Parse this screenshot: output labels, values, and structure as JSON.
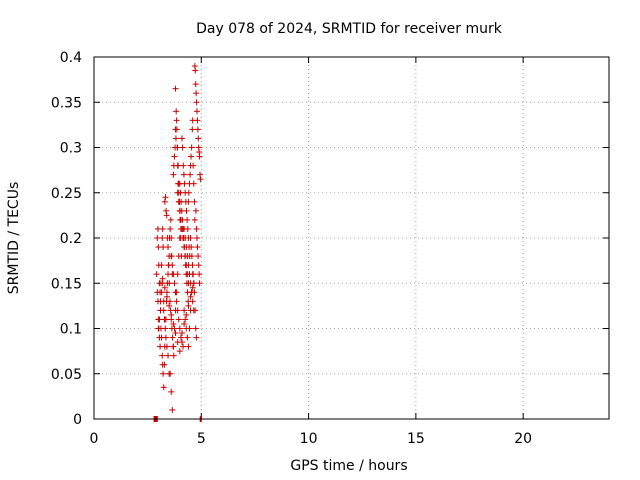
{
  "chart_data": {
    "type": "scatter",
    "title": "Day 078 of 2024, SRMTID for receiver murk",
    "xlabel": "GPS time / hours",
    "ylabel": "SRMTID / TECUs",
    "xlim": [
      0,
      24
    ],
    "ylim": [
      0,
      0.4
    ],
    "x_ticks": [
      0,
      5,
      10,
      15,
      20
    ],
    "x_tick_labels": [
      "0",
      "5",
      "10",
      "15",
      "20"
    ],
    "y_ticks": [
      0,
      0.05,
      0.1,
      0.15,
      0.2,
      0.25,
      0.3,
      0.35,
      0.4
    ],
    "y_tick_labels": [
      "0",
      "0.05",
      "0.1",
      "0.15",
      "0.2",
      "0.25",
      "0.3",
      "0.35",
      "0.4"
    ],
    "grid": true,
    "marker": "plus",
    "marker_color": "#cc0000",
    "series": [
      {
        "x": [
          2.8,
          2.83,
          2.86,
          2.88,
          2.9,
          2.92,
          2.95,
          4.95,
          4.97,
          5.0,
          2.92,
          2.95,
          2.98,
          3.0,
          3.02,
          3.05,
          3.08,
          3.1,
          3.12,
          3.15,
          3.18,
          3.2,
          3.22,
          3.25,
          3.28,
          2.95,
          2.98,
          3.0,
          3.02,
          3.05,
          3.08,
          3.1,
          3.12,
          3.15,
          3.18,
          3.2,
          3.22,
          3.25,
          3.28,
          3.3,
          3.32,
          3.35,
          3.38,
          3.4,
          3.42,
          3.45,
          3.48,
          3.5,
          3.52,
          3.55,
          3.58,
          3.6,
          3.62,
          3.65,
          3.3,
          3.33,
          3.36,
          3.39,
          3.42,
          3.45,
          3.48,
          3.51,
          3.54,
          3.57,
          3.6,
          3.63,
          3.66,
          3.69,
          3.72,
          3.5,
          3.55,
          3.6,
          3.65,
          3.7,
          3.75,
          3.8,
          3.85,
          3.9,
          3.95,
          4.0,
          4.05,
          3.7,
          3.72,
          3.75,
          3.78,
          3.8,
          3.82,
          3.85,
          3.88,
          3.9,
          3.92,
          3.95,
          3.98,
          4.0,
          3.8,
          3.83,
          3.86,
          3.89,
          3.92,
          3.95,
          3.98,
          4.01,
          4.04,
          4.07,
          4.0,
          4.03,
          4.06,
          4.09,
          4.12,
          4.15,
          4.18,
          4.21,
          4.24,
          4.27,
          4.3,
          4.33,
          4.36,
          4.39,
          4.1,
          4.13,
          4.16,
          4.19,
          4.22,
          4.25,
          4.28,
          4.31,
          4.34,
          4.37,
          4.4,
          4.43,
          4.46,
          4.2,
          4.25,
          4.3,
          4.35,
          4.4,
          4.45,
          4.5,
          4.55,
          4.6,
          4.65,
          4.4,
          4.42,
          4.45,
          4.48,
          4.5,
          4.52,
          4.55,
          4.58,
          4.6,
          4.62,
          4.65,
          4.68,
          4.7,
          4.5,
          4.53,
          4.56,
          4.59,
          4.62,
          4.65,
          4.68,
          4.71,
          4.74,
          4.77,
          4.7,
          4.72,
          4.74,
          4.76,
          4.78,
          4.8,
          4.82,
          4.84,
          4.86,
          4.88,
          4.9,
          4.92,
          4.94,
          4.96,
          4.75,
          4.78,
          4.8,
          4.82,
          4.85,
          4.88,
          4.9,
          4.92,
          3.0,
          3.05,
          3.1,
          3.15,
          3.2,
          3.25,
          3.3,
          3.35,
          3.4,
          3.45,
          3.6,
          3.65,
          3.7,
          3.75,
          3.8,
          3.85,
          3.9,
          3.95,
          4.0,
          4.05,
          4.1,
          4.15,
          4.2,
          4.25,
          4.3,
          4.35,
          4.4,
          4.45,
          4.5,
          4.55,
          4.6,
          4.65,
          3.9,
          3.95,
          4.0,
          4.05,
          4.1,
          4.15,
          4.2,
          4.25,
          4.3,
          4.35,
          4.4,
          3.2,
          3.3,
          3.4,
          3.5,
          3.6,
          3.7,
          3.8,
          3.9,
          4.0,
          4.1,
          4.2,
          4.3,
          4.4,
          4.5,
          4.6
        ],
        "y": [
          0.0,
          0.0,
          0.0,
          0.0,
          0.0,
          0.0,
          0.0,
          0.0,
          0.0,
          0.0,
          0.16,
          0.14,
          0.13,
          0.11,
          0.1,
          0.09,
          0.08,
          0.12,
          0.15,
          0.17,
          0.2,
          0.21,
          0.19,
          0.13,
          0.11,
          0.2,
          0.21,
          0.19,
          0.17,
          0.15,
          0.14,
          0.12,
          0.1,
          0.09,
          0.07,
          0.06,
          0.05,
          0.035,
          0.06,
          0.08,
          0.1,
          0.11,
          0.13,
          0.14,
          0.15,
          0.16,
          0.17,
          0.18,
          0.2,
          0.21,
          0.22,
          0.2,
          0.18,
          0.16,
          0.24,
          0.245,
          0.23,
          0.225,
          0.2,
          0.19,
          0.17,
          0.15,
          0.13,
          0.12,
          0.11,
          0.1,
          0.09,
          0.08,
          0.07,
          0.05,
          0.05,
          0.03,
          0.01,
          0.08,
          0.1,
          0.12,
          0.14,
          0.16,
          0.18,
          0.2,
          0.21,
          0.27,
          0.28,
          0.29,
          0.3,
          0.32,
          0.31,
          0.33,
          0.3,
          0.28,
          0.26,
          0.25,
          0.24,
          0.23,
          0.365,
          0.34,
          0.32,
          0.3,
          0.28,
          0.26,
          0.24,
          0.22,
          0.2,
          0.18,
          0.26,
          0.25,
          0.24,
          0.23,
          0.22,
          0.21,
          0.2,
          0.19,
          0.18,
          0.17,
          0.16,
          0.15,
          0.14,
          0.13,
          0.31,
          0.3,
          0.28,
          0.27,
          0.26,
          0.25,
          0.24,
          0.23,
          0.22,
          0.21,
          0.2,
          0.19,
          0.18,
          0.12,
          0.11,
          0.1,
          0.09,
          0.08,
          0.1,
          0.12,
          0.14,
          0.16,
          0.15,
          0.24,
          0.25,
          0.26,
          0.27,
          0.28,
          0.29,
          0.3,
          0.32,
          0.33,
          0.28,
          0.26,
          0.24,
          0.22,
          0.2,
          0.19,
          0.18,
          0.17,
          0.16,
          0.15,
          0.14,
          0.12,
          0.1,
          0.09,
          0.39,
          0.385,
          0.37,
          0.36,
          0.35,
          0.34,
          0.33,
          0.32,
          0.31,
          0.3,
          0.295,
          0.29,
          0.27,
          0.265,
          0.23,
          0.21,
          0.2,
          0.19,
          0.18,
          0.17,
          0.16,
          0.15,
          0.1,
          0.11,
          0.13,
          0.14,
          0.15,
          0.12,
          0.11,
          0.09,
          0.08,
          0.07,
          0.18,
          0.17,
          0.16,
          0.15,
          0.14,
          0.13,
          0.12,
          0.11,
          0.1,
          0.09,
          0.085,
          0.08,
          0.21,
          0.2,
          0.19,
          0.18,
          0.17,
          0.16,
          0.15,
          0.14,
          0.13,
          0.12,
          0.25,
          0.24,
          0.23,
          0.22,
          0.21,
          0.2,
          0.19,
          0.18,
          0.17,
          0.16,
          0.15,
          0.155,
          0.145,
          0.135,
          0.125,
          0.115,
          0.105,
          0.095,
          0.085,
          0.075,
          0.095,
          0.105,
          0.115,
          0.125,
          0.135,
          0.145
        ]
      }
    ]
  }
}
